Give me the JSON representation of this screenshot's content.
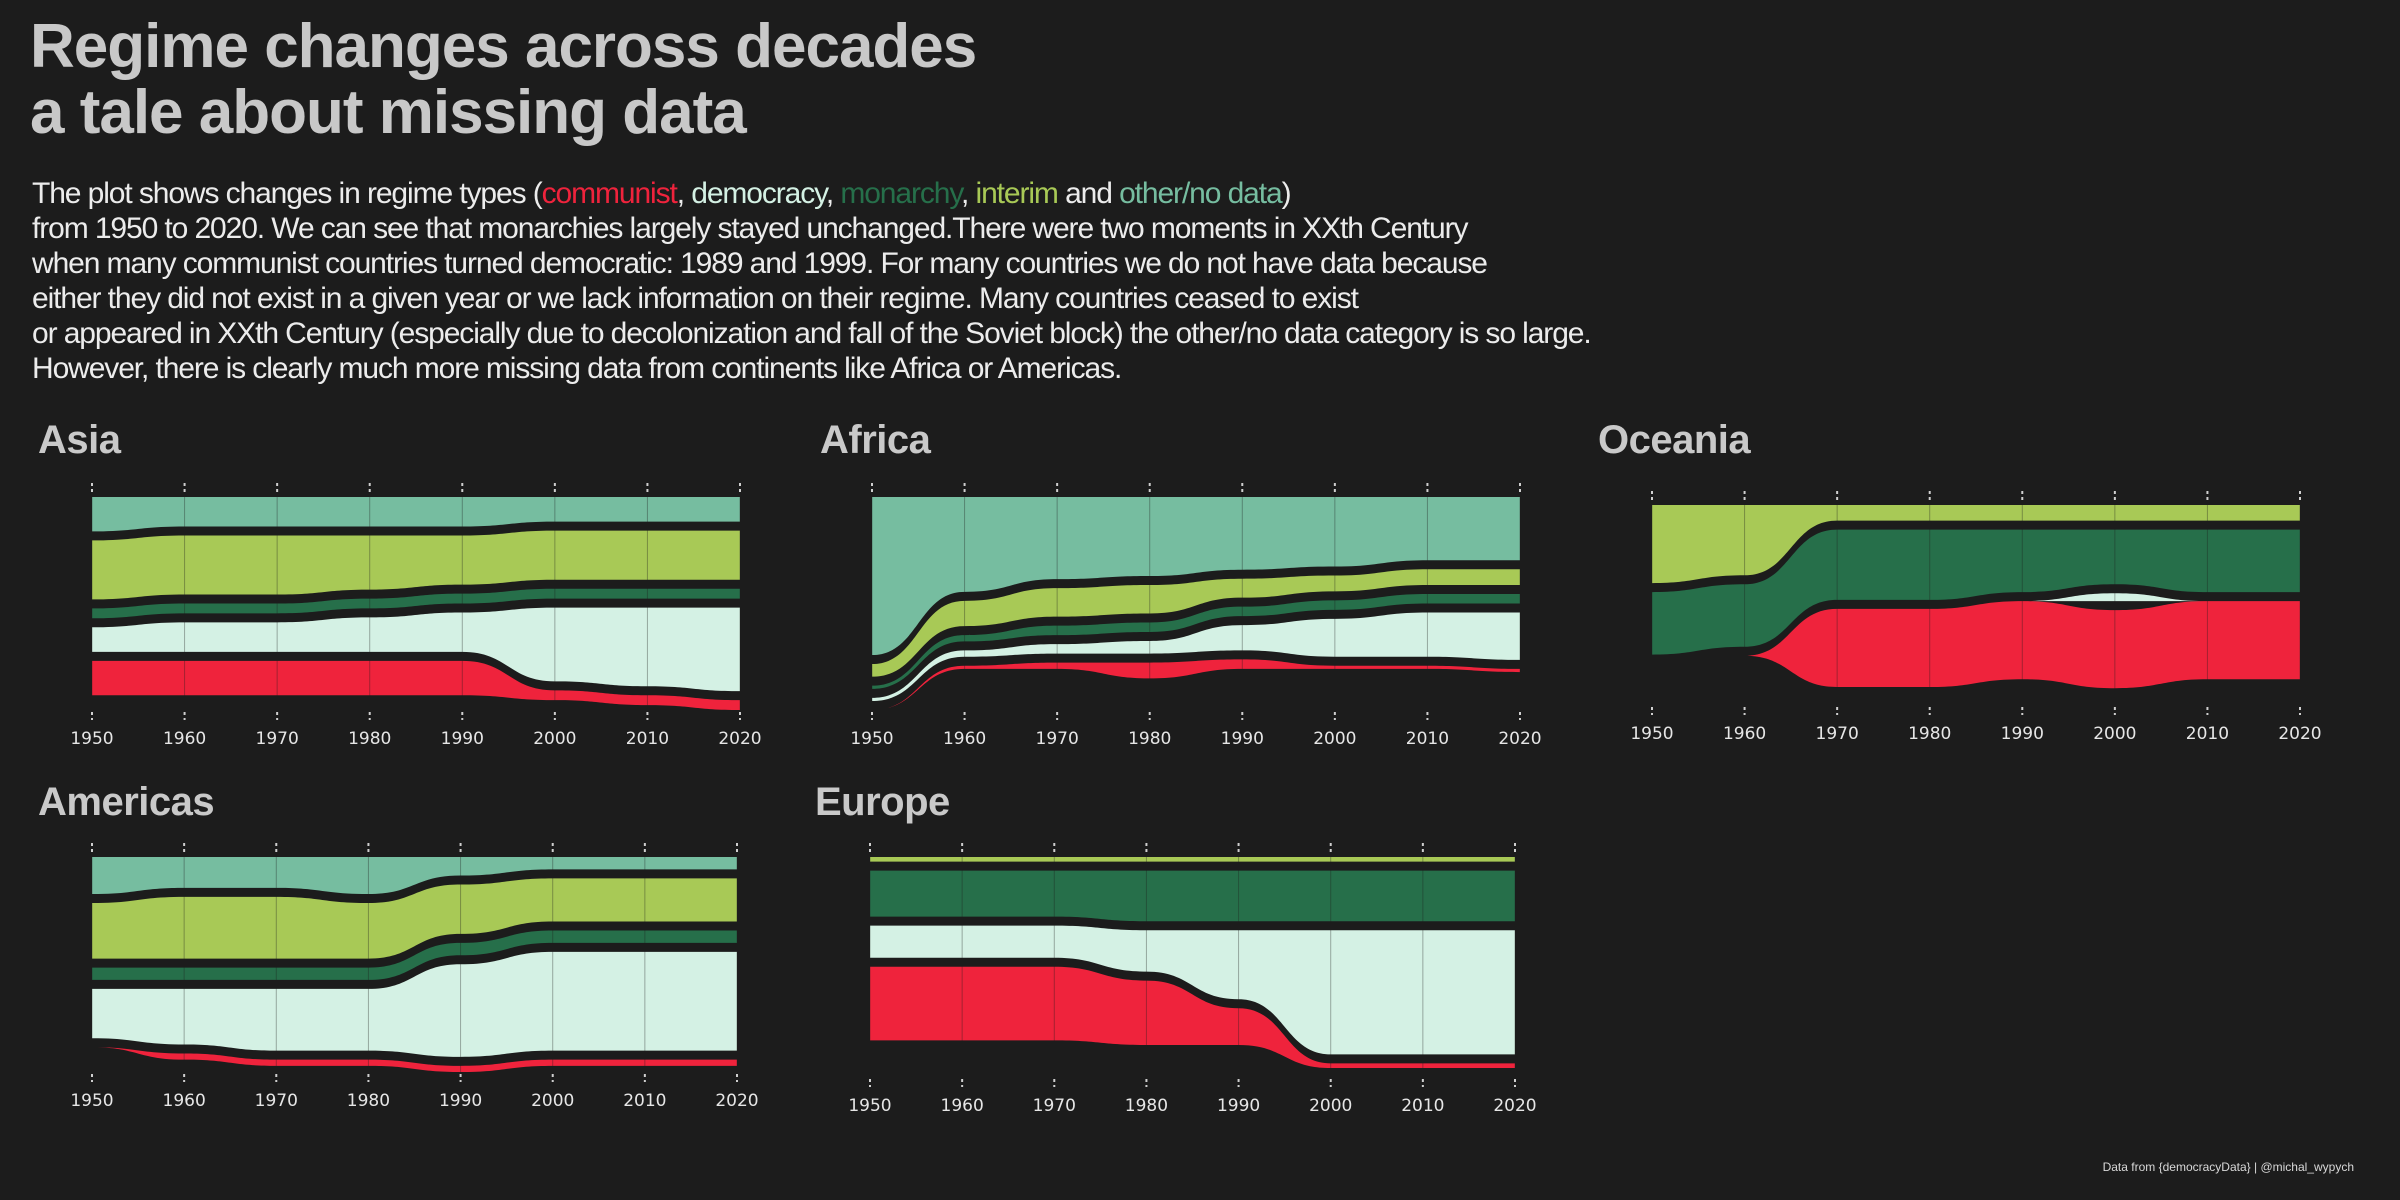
{
  "title_lines": [
    "Regime changes across decades",
    "a tale about missing data"
  ],
  "description": {
    "line1_start": "The plot shows changes in regime types (",
    "sep_comma": ", ",
    "sep_and": " and ",
    "line1_end": ")",
    "lines": [
      "from 1950 to 2020. We can see that monarchies largely stayed unchanged.There were two moments in XXth Century",
      "when many communist countries turned democratic: 1989 and 1999. For many countries we do not have data because",
      "either they did not exist in a given year or we lack information on their regime. Many countries ceased to exist",
      "or appeared in XXth Century (especially due to decolonization and fall of the Soviet block) the other/no data category is so large.",
      "However, there is clearly much more missing data from continents like Africa or Americas."
    ]
  },
  "legend": [
    {
      "key": "communist",
      "label": "communist",
      "color": "#ef233c"
    },
    {
      "key": "democracy",
      "label": "democracy",
      "color": "#d4f1e4"
    },
    {
      "key": "monarchy",
      "label": "monarchy",
      "color": "#266f4a"
    },
    {
      "key": "interim",
      "label": "interim",
      "color": "#a8c956"
    },
    {
      "key": "other",
      "label": "other/no data",
      "color": "#76bda0"
    }
  ],
  "caption": "Data from {democracyData} | @michal_wypych",
  "chart_data": [
    {
      "type": "area",
      "subtype": "alluvial",
      "title": "Asia",
      "x": [
        1950,
        1960,
        1970,
        1980,
        1990,
        2000,
        2010,
        2020
      ],
      "xticks": [
        "1950",
        "1960",
        "1970",
        "1980",
        "1990",
        "2000",
        "2010",
        "2020"
      ],
      "stack_order": [
        "other",
        "interim",
        "monarchy",
        "democracy",
        "communist"
      ],
      "series": [
        {
          "key": "other",
          "values": [
            7,
            6,
            6,
            6,
            6,
            5,
            5,
            5
          ]
        },
        {
          "key": "interim",
          "values": [
            12,
            12,
            12,
            11,
            10,
            10,
            10,
            10
          ]
        },
        {
          "key": "monarchy",
          "values": [
            2,
            2,
            2,
            2,
            2,
            2,
            2,
            2
          ]
        },
        {
          "key": "democracy",
          "values": [
            5,
            6,
            6,
            7,
            8,
            15,
            16,
            17
          ]
        },
        {
          "key": "communist",
          "values": [
            7,
            7,
            7,
            7,
            7,
            2,
            2,
            2
          ]
        }
      ]
    },
    {
      "type": "area",
      "subtype": "alluvial",
      "title": "Africa",
      "x": [
        1950,
        1960,
        1970,
        1980,
        1990,
        2000,
        2010,
        2020
      ],
      "xticks": [
        "1950",
        "1960",
        "1970",
        "1980",
        "1990",
        "2000",
        "2010",
        "2020"
      ],
      "stack_order": [
        "other",
        "interim",
        "monarchy",
        "democracy",
        "communist"
      ],
      "series": [
        {
          "key": "other",
          "values": [
            50,
            30,
            26,
            25,
            23,
            22,
            20,
            20
          ]
        },
        {
          "key": "interim",
          "values": [
            4,
            8,
            9,
            9,
            6,
            5,
            5,
            5
          ]
        },
        {
          "key": "monarchy",
          "values": [
            1,
            2,
            3,
            3,
            3,
            3,
            3,
            3
          ]
        },
        {
          "key": "democracy",
          "values": [
            1,
            2,
            3,
            4,
            8,
            12,
            14,
            15
          ]
        },
        {
          "key": "communist",
          "values": [
            0,
            1,
            2,
            5,
            3,
            1,
            1,
            1
          ]
        }
      ]
    },
    {
      "type": "area",
      "subtype": "alluvial",
      "title": "Oceania",
      "x": [
        1950,
        1960,
        1970,
        1980,
        1990,
        2000,
        2010,
        2020
      ],
      "xticks": [
        "1950",
        "1960",
        "1970",
        "1980",
        "1990",
        "2000",
        "2010",
        "2020"
      ],
      "stack_order": [
        "other",
        "interim",
        "monarchy",
        "democracy",
        "communist"
      ],
      "series": [
        {
          "key": "other",
          "values": [
            0,
            0,
            0,
            0,
            0,
            0,
            0,
            0
          ]
        },
        {
          "key": "interim",
          "values": [
            10,
            9,
            2,
            2,
            2,
            2,
            2,
            2
          ]
        },
        {
          "key": "monarchy",
          "values": [
            8,
            8,
            9,
            9,
            8,
            7,
            8,
            8
          ]
        },
        {
          "key": "democracy",
          "values": [
            0,
            0,
            0,
            0,
            0,
            1,
            0,
            0
          ]
        },
        {
          "key": "communist",
          "values": [
            0,
            0,
            10,
            10,
            10,
            10,
            10,
            10
          ]
        }
      ]
    },
    {
      "type": "area",
      "subtype": "alluvial",
      "title": "Americas",
      "x": [
        1950,
        1960,
        1970,
        1980,
        1990,
        2000,
        2010,
        2020
      ],
      "xticks": [
        "1950",
        "1960",
        "1970",
        "1980",
        "1990",
        "2000",
        "2010",
        "2020"
      ],
      "stack_order": [
        "other",
        "interim",
        "monarchy",
        "democracy",
        "communist"
      ],
      "series": [
        {
          "key": "other",
          "values": [
            6,
            5,
            5,
            6,
            3,
            2,
            2,
            2
          ]
        },
        {
          "key": "interim",
          "values": [
            9,
            10,
            10,
            9,
            8,
            7,
            7,
            7
          ]
        },
        {
          "key": "monarchy",
          "values": [
            2,
            2,
            2,
            2,
            2,
            2,
            2,
            2
          ]
        },
        {
          "key": "democracy",
          "values": [
            8,
            9,
            10,
            10,
            15,
            16,
            16,
            16
          ]
        },
        {
          "key": "communist",
          "values": [
            0,
            1,
            1,
            1,
            1,
            1,
            1,
            1
          ]
        }
      ]
    },
    {
      "type": "area",
      "subtype": "alluvial",
      "title": "Europe",
      "x": [
        1950,
        1960,
        1970,
        1980,
        1990,
        2000,
        2010,
        2020
      ],
      "xticks": [
        "1950",
        "1960",
        "1970",
        "1980",
        "1990",
        "2000",
        "2010",
        "2020"
      ],
      "stack_order": [
        "other",
        "interim",
        "monarchy",
        "democracy",
        "communist"
      ],
      "series": [
        {
          "key": "other",
          "values": [
            0,
            0,
            0,
            0,
            0,
            0,
            0,
            0
          ]
        },
        {
          "key": "interim",
          "values": [
            1,
            1,
            1,
            1,
            1,
            1,
            1,
            1
          ]
        },
        {
          "key": "monarchy",
          "values": [
            10,
            10,
            10,
            11,
            11,
            11,
            11,
            11
          ]
        },
        {
          "key": "democracy",
          "values": [
            7,
            7,
            7,
            9,
            15,
            27,
            27,
            27
          ]
        },
        {
          "key": "communist",
          "values": [
            16,
            16,
            16,
            14,
            8,
            1,
            1,
            1
          ]
        }
      ]
    }
  ]
}
